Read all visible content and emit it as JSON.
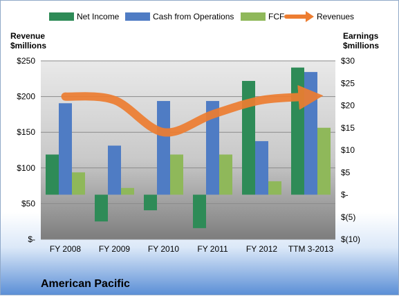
{
  "chart_data": {
    "type": "bar",
    "title": "American Pacific",
    "categories": [
      "FY 2008",
      "FY 2009",
      "FY 2010",
      "FY 2011",
      "FY 2012",
      "TTM 3-2013"
    ],
    "series": [
      {
        "name": "Net Income",
        "axis": "right",
        "kind": "bar",
        "values": [
          9,
          -6,
          -3.5,
          -7.5,
          25.5,
          28.5
        ]
      },
      {
        "name": "Cash from Operations",
        "axis": "right",
        "kind": "bar",
        "values": [
          20.5,
          11,
          21,
          21,
          12,
          27.5
        ]
      },
      {
        "name": "FCF",
        "axis": "right",
        "kind": "bar",
        "values": [
          5,
          1.5,
          9,
          9,
          3,
          15
        ]
      },
      {
        "name": "Revenues",
        "axis": "left",
        "kind": "line",
        "values": [
          200,
          195,
          150,
          175,
          195,
          200
        ]
      }
    ],
    "ylabel": "Revenue\n$millions",
    "ylabel_right": "Earnings\n$millions",
    "ylim": [
      0,
      250
    ],
    "ylim_right": [
      -10,
      30
    ],
    "yticks": [
      "$-",
      "$50",
      "$100",
      "$150",
      "$200",
      "$250"
    ],
    "yticks_right": [
      "$(10)",
      "$(5)",
      "$-",
      "$5",
      "$10",
      "$15",
      "$20",
      "$25",
      "$30"
    ],
    "grid": true,
    "legend": "top",
    "colors": {
      "Net Income": "#2e8b57",
      "Cash from Operations": "#4f7cc4",
      "FCF": "#8fb85a",
      "Revenues": "#ed7d31"
    }
  }
}
